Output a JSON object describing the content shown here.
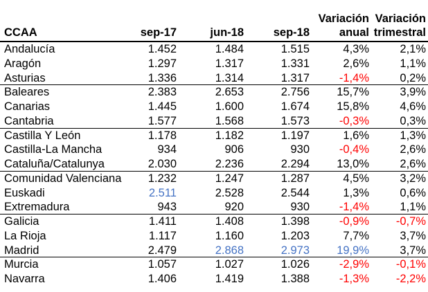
{
  "chart_data": {
    "type": "table",
    "header": {
      "col_ccaa": "CCAA",
      "col_sep17": "sep-17",
      "col_jun18": "jun-18",
      "col_sep18": "sep-18",
      "col_var_anual_line1": "Variación",
      "col_var_anual_line2": "anual",
      "col_var_trimestral_line1": "Variación",
      "col_var_trimestral_line2": "trimestral"
    },
    "columns": [
      "CCAA",
      "sep-17",
      "jun-18",
      "sep-18",
      "Variación anual",
      "Variación trimestral"
    ],
    "rows": [
      {
        "ccaa": "Andalucía",
        "values": [
          "1.452",
          "1.484",
          "1.515",
          "4,3%",
          "2,1%"
        ],
        "colors": [
          null,
          null,
          null,
          null,
          null
        ],
        "group_end": false
      },
      {
        "ccaa": "Aragón",
        "values": [
          "1.297",
          "1.317",
          "1.331",
          "2,6%",
          "1,1%"
        ],
        "colors": [
          null,
          null,
          null,
          null,
          null
        ],
        "group_end": false
      },
      {
        "ccaa": "Asturias",
        "values": [
          "1.336",
          "1.314",
          "1.317",
          "-1,4%",
          "0,2%"
        ],
        "colors": [
          null,
          null,
          null,
          "negative",
          null
        ],
        "group_end": true
      },
      {
        "ccaa": "Baleares",
        "values": [
          "2.383",
          "2.653",
          "2.756",
          "15,7%",
          "3,9%"
        ],
        "colors": [
          null,
          null,
          null,
          null,
          null
        ],
        "group_end": false
      },
      {
        "ccaa": "Canarias",
        "values": [
          "1.445",
          "1.600",
          "1.674",
          "15,8%",
          "4,6%"
        ],
        "colors": [
          null,
          null,
          null,
          null,
          null
        ],
        "group_end": false
      },
      {
        "ccaa": "Cantabria",
        "values": [
          "1.577",
          "1.568",
          "1.573",
          "-0,3%",
          "0,3%"
        ],
        "colors": [
          null,
          null,
          null,
          "negative",
          null
        ],
        "group_end": true
      },
      {
        "ccaa": "Castilla Y León",
        "values": [
          "1.178",
          "1.182",
          "1.197",
          "1,6%",
          "1,3%"
        ],
        "colors": [
          null,
          null,
          null,
          null,
          null
        ],
        "group_end": false
      },
      {
        "ccaa": "Castilla-La Mancha",
        "values": [
          "934",
          "906",
          "930",
          "-0,4%",
          "2,6%"
        ],
        "colors": [
          null,
          null,
          null,
          "negative",
          null
        ],
        "group_end": false
      },
      {
        "ccaa": "Cataluña/Catalunya",
        "values": [
          "2.030",
          "2.236",
          "2.294",
          "13,0%",
          "2,6%"
        ],
        "colors": [
          null,
          null,
          null,
          null,
          null
        ],
        "group_end": true
      },
      {
        "ccaa": "Comunidad Valenciana",
        "values": [
          "1.232",
          "1.247",
          "1.287",
          "4,5%",
          "3,2%"
        ],
        "colors": [
          null,
          null,
          null,
          null,
          null
        ],
        "group_end": false
      },
      {
        "ccaa": "Euskadi",
        "values": [
          "2.511",
          "2.528",
          "2.544",
          "1,3%",
          "0,6%"
        ],
        "colors": [
          "highlight",
          null,
          null,
          null,
          null
        ],
        "group_end": false
      },
      {
        "ccaa": "Extremadura",
        "values": [
          "943",
          "920",
          "930",
          "-1,4%",
          "1,1%"
        ],
        "colors": [
          null,
          null,
          null,
          "negative",
          null
        ],
        "group_end": true
      },
      {
        "ccaa": "Galicia",
        "values": [
          "1.411",
          "1.408",
          "1.398",
          "-0,9%",
          "-0,7%"
        ],
        "colors": [
          null,
          null,
          null,
          "negative",
          "negative"
        ],
        "group_end": false
      },
      {
        "ccaa": "La Rioja",
        "values": [
          "1.117",
          "1.160",
          "1.203",
          "7,7%",
          "3,7%"
        ],
        "colors": [
          null,
          null,
          null,
          null,
          null
        ],
        "group_end": false
      },
      {
        "ccaa": "Madrid",
        "values": [
          "2.479",
          "2.868",
          "2.973",
          "19,9%",
          "3,7%"
        ],
        "colors": [
          null,
          "highlight",
          "highlight",
          "highlight",
          null
        ],
        "group_end": true
      },
      {
        "ccaa": "Murcia",
        "values": [
          "1.057",
          "1.027",
          "1.026",
          "-2,9%",
          "-0,1%"
        ],
        "colors": [
          null,
          null,
          null,
          "negative",
          "negative"
        ],
        "group_end": false
      },
      {
        "ccaa": "Navarra",
        "values": [
          "1.406",
          "1.419",
          "1.388",
          "-1,3%",
          "-2,2%"
        ],
        "colors": [
          null,
          null,
          null,
          "negative",
          "negative"
        ],
        "group_end": false
      }
    ]
  },
  "colors": {
    "negative": "#FF0000",
    "highlight": "#4472C4",
    "text": "#000000",
    "border": "#000000",
    "background": "#FFFFFF"
  }
}
